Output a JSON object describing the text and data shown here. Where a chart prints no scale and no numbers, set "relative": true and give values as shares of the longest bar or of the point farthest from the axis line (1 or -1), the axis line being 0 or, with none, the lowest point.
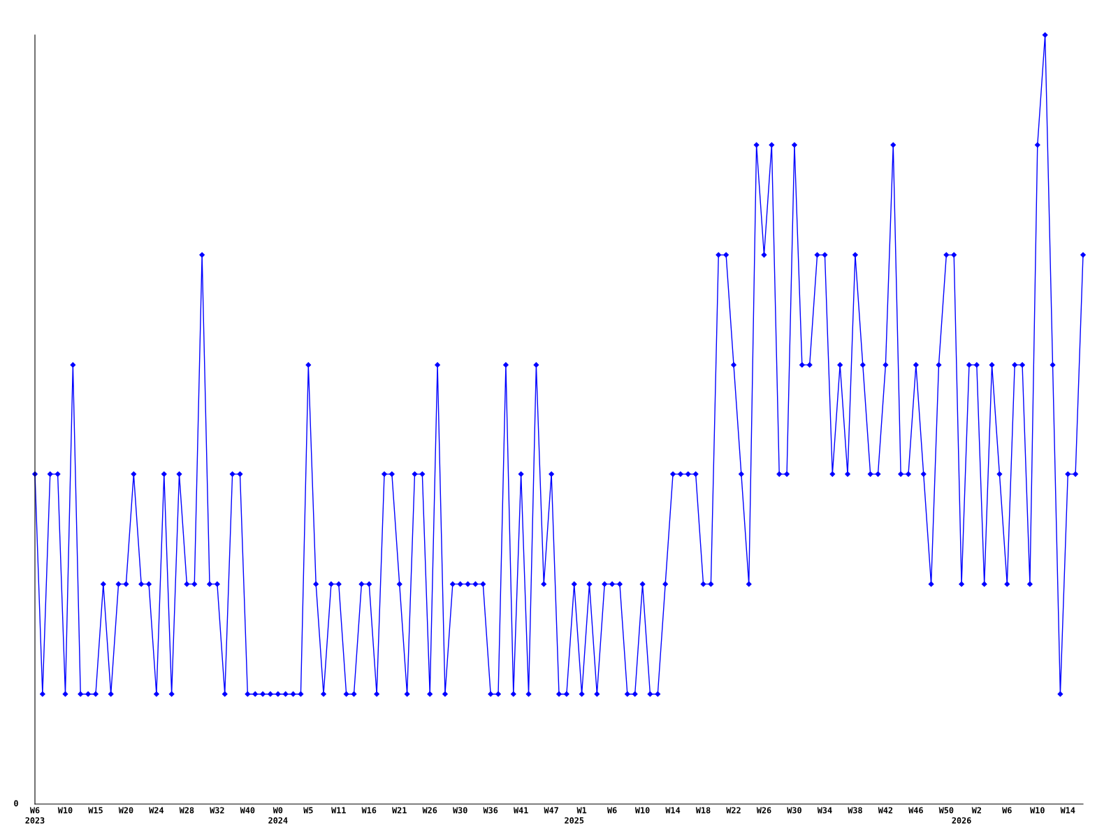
{
  "chart_data": {
    "type": "line",
    "relative": true,
    "marker": "diamond",
    "line_style": "solid",
    "annotations": [
      "0"
    ],
    "categories": [
      "W6\n2023",
      null,
      null,
      null,
      "W10",
      null,
      null,
      null,
      "W15",
      null,
      null,
      null,
      "W20",
      null,
      null,
      null,
      "W24",
      null,
      null,
      null,
      "W28",
      null,
      null,
      null,
      "W32",
      null,
      null,
      null,
      "W40",
      null,
      null,
      null,
      "W0\n2024",
      null,
      null,
      null,
      "W5",
      null,
      null,
      null,
      "W11",
      null,
      null,
      null,
      "W16",
      null,
      null,
      null,
      "W21",
      null,
      null,
      null,
      "W26",
      null,
      null,
      null,
      "W30",
      null,
      null,
      null,
      "W36",
      null,
      null,
      null,
      "W41",
      null,
      null,
      null,
      "W47",
      null,
      null,
      "\n2025",
      "W1",
      null,
      null,
      null,
      "W6",
      null,
      null,
      null,
      "W10",
      null,
      null,
      null,
      "W14",
      null,
      null,
      null,
      "W18",
      null,
      null,
      null,
      "W22",
      null,
      null,
      null,
      "W26",
      null,
      null,
      null,
      "W30",
      null,
      null,
      null,
      "W34",
      null,
      null,
      null,
      "W38",
      null,
      null,
      null,
      "W42",
      null,
      null,
      null,
      "W46",
      null,
      null,
      null,
      "W50",
      null,
      "\n2026",
      null,
      "W2",
      null,
      null,
      null,
      "W6",
      null,
      null,
      null,
      "W10",
      null,
      null,
      null,
      "W14",
      null,
      null
    ],
    "series": [
      {
        "color": "#0000ff",
        "values": [
          0.429,
          0.143,
          0.429,
          0.429,
          0.143,
          0.571,
          0.143,
          0.143,
          0.143,
          0.286,
          0.143,
          0.286,
          0.286,
          0.429,
          0.286,
          0.286,
          0.143,
          0.429,
          0.143,
          0.429,
          0.286,
          0.286,
          0.714,
          0.286,
          0.286,
          0.143,
          0.429,
          0.429,
          0.143,
          0.143,
          0.143,
          0.143,
          0.143,
          0.143,
          0.143,
          0.143,
          0.571,
          0.286,
          0.143,
          0.286,
          0.286,
          0.143,
          0.143,
          0.286,
          0.286,
          0.143,
          0.429,
          0.429,
          0.286,
          0.143,
          0.429,
          0.429,
          0.143,
          0.571,
          0.143,
          0.286,
          0.286,
          0.286,
          0.286,
          0.286,
          0.143,
          0.143,
          0.571,
          0.143,
          0.429,
          0.143,
          0.571,
          0.286,
          0.429,
          0.143,
          0.143,
          0.286,
          0.143,
          0.286,
          0.143,
          0.286,
          0.286,
          0.286,
          0.143,
          0.143,
          0.286,
          0.143,
          0.143,
          0.286,
          0.429,
          0.429,
          0.429,
          0.429,
          0.286,
          0.286,
          0.714,
          0.714,
          0.571,
          0.429,
          0.286,
          0.857,
          0.714,
          0.857,
          0.429,
          0.429,
          0.857,
          0.571,
          0.571,
          0.714,
          0.714,
          0.429,
          0.571,
          0.429,
          0.714,
          0.571,
          0.429,
          0.429,
          0.571,
          0.857,
          0.429,
          0.429,
          0.571,
          0.429,
          0.286,
          0.571,
          0.714,
          0.714,
          0.286,
          0.571,
          0.571,
          0.286,
          0.571,
          0.429,
          0.286,
          0.571,
          0.571,
          0.286,
          0.857,
          1,
          0.571,
          0.143,
          0.429,
          0.429,
          0.714
        ]
      }
    ]
  }
}
